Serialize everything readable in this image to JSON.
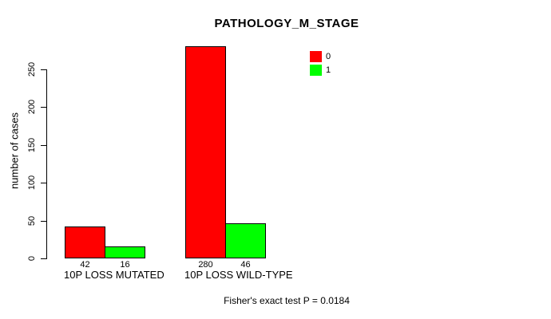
{
  "chart_data": {
    "type": "bar",
    "title": "PATHOLOGY_M_STAGE",
    "ylabel": "number of cases",
    "ylim": [
      0,
      250
    ],
    "yticks": [
      0,
      50,
      100,
      150,
      200,
      250
    ],
    "categories": [
      "10P LOSS MUTATED",
      "10P LOSS WILD-TYPE"
    ],
    "series": [
      {
        "name": "0",
        "color": "#FF0000",
        "values": [
          42,
          280
        ]
      },
      {
        "name": "1",
        "color": "#00FF00",
        "values": [
          16,
          46
        ]
      }
    ],
    "annotation": "Fisher's exact test P = 0.0184",
    "legend_position": "top-right",
    "grid": false,
    "bar_border_color": "#000000",
    "axis_color": "#000000",
    "background_color": "#FFFFFF"
  }
}
